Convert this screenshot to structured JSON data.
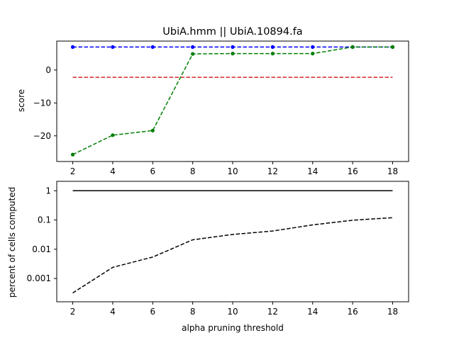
{
  "chart_data": [
    {
      "type": "line",
      "title": "UbiA.hmm || UbiA.10894.fa",
      "xlabel": "",
      "ylabel": "score",
      "x": [
        2,
        4,
        6,
        8,
        10,
        12,
        14,
        16,
        18
      ],
      "xlim": [
        1.2,
        18.8
      ],
      "ylim": [
        -27.8,
        8.8
      ],
      "xticks": [
        2,
        4,
        6,
        8,
        10,
        12,
        14,
        16,
        18
      ],
      "yticks": [
        0,
        -10,
        -20
      ],
      "ytick_labels": [
        "0",
        "−10",
        "−20"
      ],
      "grid": false,
      "series": [
        {
          "color": "#0000ff",
          "style": "dashed",
          "markers": true,
          "values": [
            7,
            7,
            7,
            7,
            7,
            7,
            7,
            7,
            7
          ]
        },
        {
          "color": "#d62728",
          "style": "dashed",
          "markers": false,
          "values": [
            -2.2,
            -2.2,
            -2.2,
            -2.2,
            -2.2,
            -2.2,
            -2.2,
            -2.2,
            -2.2
          ]
        },
        {
          "color": "#007f00",
          "style": "dashed",
          "markers": true,
          "values": [
            -25.7,
            -19.8,
            -18.4,
            4.9,
            5.0,
            5.0,
            5.0,
            7.0,
            7.0
          ]
        }
      ]
    },
    {
      "type": "line",
      "title": "",
      "xlabel": "alpha pruning threshold",
      "ylabel": "percent of cells computed",
      "x": [
        2,
        4,
        6,
        8,
        10,
        12,
        14,
        16,
        18
      ],
      "xlim": [
        1.2,
        18.8
      ],
      "ylim": [
        0.00016,
        2.1
      ],
      "scale_y": "log",
      "xticks": [
        2,
        4,
        6,
        8,
        10,
        12,
        14,
        16,
        18
      ],
      "yticks": [
        1,
        0.1,
        0.01,
        0.001
      ],
      "ytick_labels": [
        "1",
        "0.1",
        "0.01",
        "0.001"
      ],
      "grid": false,
      "series": [
        {
          "color": "#000000",
          "style": "solid",
          "markers": false,
          "values": [
            1,
            1,
            1,
            1,
            1,
            1,
            1,
            1,
            1
          ]
        },
        {
          "color": "#000000",
          "style": "dashed",
          "markers": false,
          "values": [
            0.00032,
            0.0024,
            0.0054,
            0.021,
            0.032,
            0.042,
            0.068,
            0.098,
            0.12
          ]
        }
      ]
    }
  ]
}
